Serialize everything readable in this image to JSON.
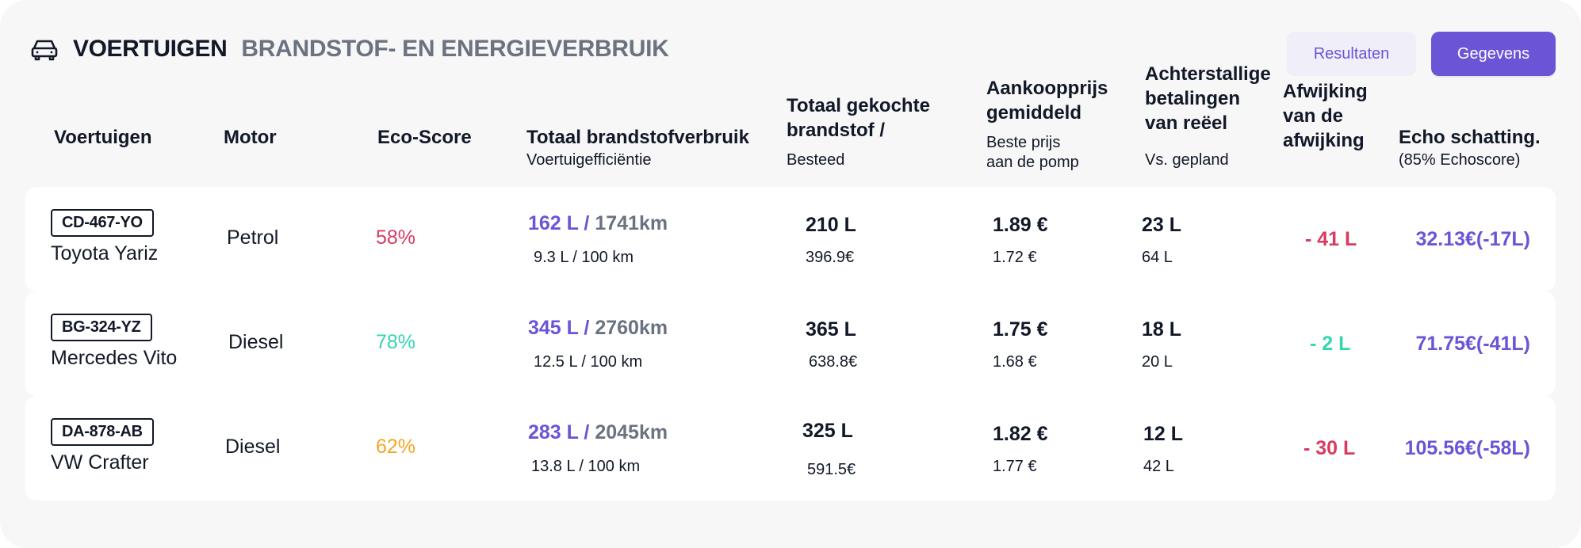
{
  "header": {
    "title": "VOERTUIGEN",
    "subtitle": "BRANDSTOF- EN ENERGIEVERBRUIK",
    "icon": "car-icon"
  },
  "buttons": {
    "results": "Resultaten",
    "data": "Gegevens"
  },
  "columns": {
    "vehicles": {
      "title": "Voertuigen"
    },
    "engine": {
      "title": "Motor"
    },
    "eco": {
      "title": "Eco-Score"
    },
    "fuel_total": {
      "title": "Totaal brandstofverbruik",
      "subtitle": "Voertuigefficiëntie"
    },
    "fuel_bought": {
      "title": "Totaal gekochte\nbrandstof /",
      "subtitle": "Besteed"
    },
    "purchase_price": {
      "title": "Aankoopprijs\ngemiddeld",
      "subtitle": "Beste prijs\naan de pomp"
    },
    "backlog": {
      "title": "Achterstallige\nbetalingen\nvan reëel",
      "subtitle": "Vs. gepland"
    },
    "deviation": {
      "title": "Afwijking\nvan de\nafwijking"
    },
    "echo": {
      "title": "Echo schatting.",
      "subtitle": "(85% Echoscore)"
    }
  },
  "rows": [
    {
      "plate": "CD-467-YO",
      "name": "Toyota Yariz",
      "engine": "Petrol",
      "eco_score": "58%",
      "eco_color": "#d63b61",
      "fuel_liters": "162 L",
      "fuel_sep": " / ",
      "fuel_km": "1741km",
      "efficiency": "9.3 L / 100 km",
      "bought": "210 L",
      "spent": "396.9€",
      "avg_price": "1.89 €",
      "best_price": "1.72 €",
      "backlog": "23 L",
      "planned": "64 L",
      "deviation": "- 41 L",
      "deviation_color": "#d63b61",
      "echo": "32.13€(-17L)"
    },
    {
      "plate": "BG-324-YZ",
      "name": "Mercedes Vito",
      "engine": "Diesel",
      "eco_score": "78%",
      "eco_color": "#35d6b0",
      "fuel_liters": "345 L",
      "fuel_sep": " / ",
      "fuel_km": "2760km",
      "efficiency": "12.5 L / 100 km",
      "bought": "365 L",
      "spent": "638.8€",
      "avg_price": "1.75 €",
      "best_price": "1.68 €",
      "backlog": "18 L",
      "planned": "20 L",
      "deviation": "- 2 L",
      "deviation_color": "#35d6b0",
      "echo": "71.75€(-41L)"
    },
    {
      "plate": "DA-878-AB",
      "name": "VW Crafter",
      "engine": "Diesel",
      "eco_score": "62%",
      "eco_color": "#f5a623",
      "fuel_liters": "283 L",
      "fuel_sep": " / ",
      "fuel_km": "2045km",
      "efficiency": "13.8 L / 100 km",
      "bought": "325 L",
      "spent": "591.5€",
      "avg_price": "1.82 €",
      "best_price": "1.77 €",
      "backlog": "12 L",
      "planned": "42 L",
      "deviation": "- 30 L",
      "deviation_color": "#d63b61",
      "echo": "105.56€(-58L)"
    }
  ],
  "colors": {
    "accent": "#6b55d6",
    "background": "#f7f7f8",
    "row_background": "#ffffff",
    "negative": "#d63b61",
    "positive": "#35d6b0",
    "warning": "#f5a623"
  }
}
